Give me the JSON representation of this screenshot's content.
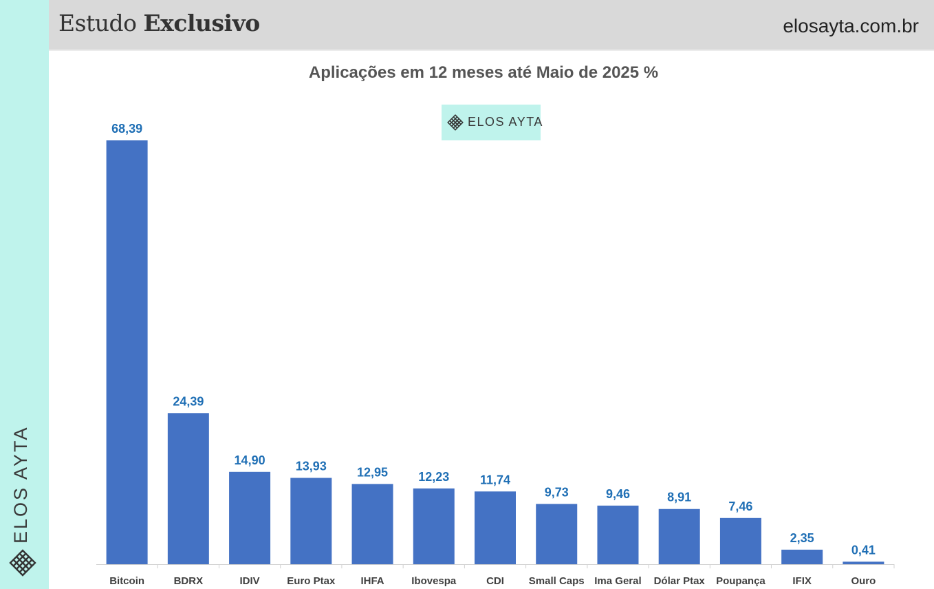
{
  "header": {
    "title_regular": "Estudo",
    "title_bold": "Exclusivo",
    "site": "elosayta.com.br"
  },
  "brand": {
    "name": "ELOS AYTA",
    "bg_color": "#bff3ec",
    "logo_icon": "diamond-grid-logo-icon"
  },
  "chart_data": {
    "type": "bar",
    "title": "Aplicações em 12 meses até Maio de 2025 %",
    "xlabel": "",
    "ylabel": "",
    "categories": [
      "Bitcoin",
      "BDRX",
      "IDIV",
      "Euro Ptax",
      "IHFA",
      "Ibovespa",
      "CDI",
      "Small Caps",
      "Ima Geral",
      "Dólar Ptax",
      "Poupança",
      "IFIX",
      "Ouro"
    ],
    "values": [
      68.39,
      24.39,
      14.9,
      13.93,
      12.95,
      12.23,
      11.74,
      9.73,
      9.46,
      8.91,
      7.46,
      2.35,
      0.41
    ],
    "value_labels": [
      "68,39",
      "24,39",
      "14,90",
      "13,93",
      "12,95",
      "12,23",
      "11,74",
      "9,73",
      "9,46",
      "8,91",
      "7,46",
      "2,35",
      "0,41"
    ],
    "ylim": [
      0,
      68.39
    ],
    "grid": false,
    "legend": "none",
    "bar_color": "#4472c4",
    "label_color": "#1f6fb5"
  }
}
